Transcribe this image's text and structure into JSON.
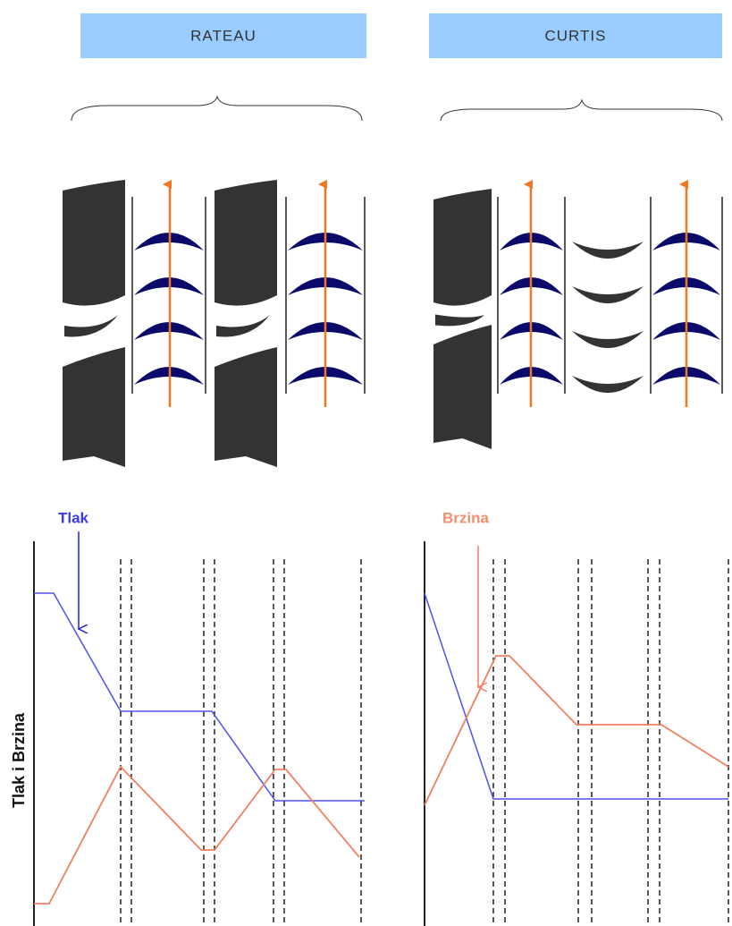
{
  "headers": {
    "left": "RATEAU",
    "right": "CURTIS"
  },
  "labels": {
    "pressure": "Tlak",
    "velocity": "Brzina",
    "axis": "Tlak i Brzina"
  }
}
